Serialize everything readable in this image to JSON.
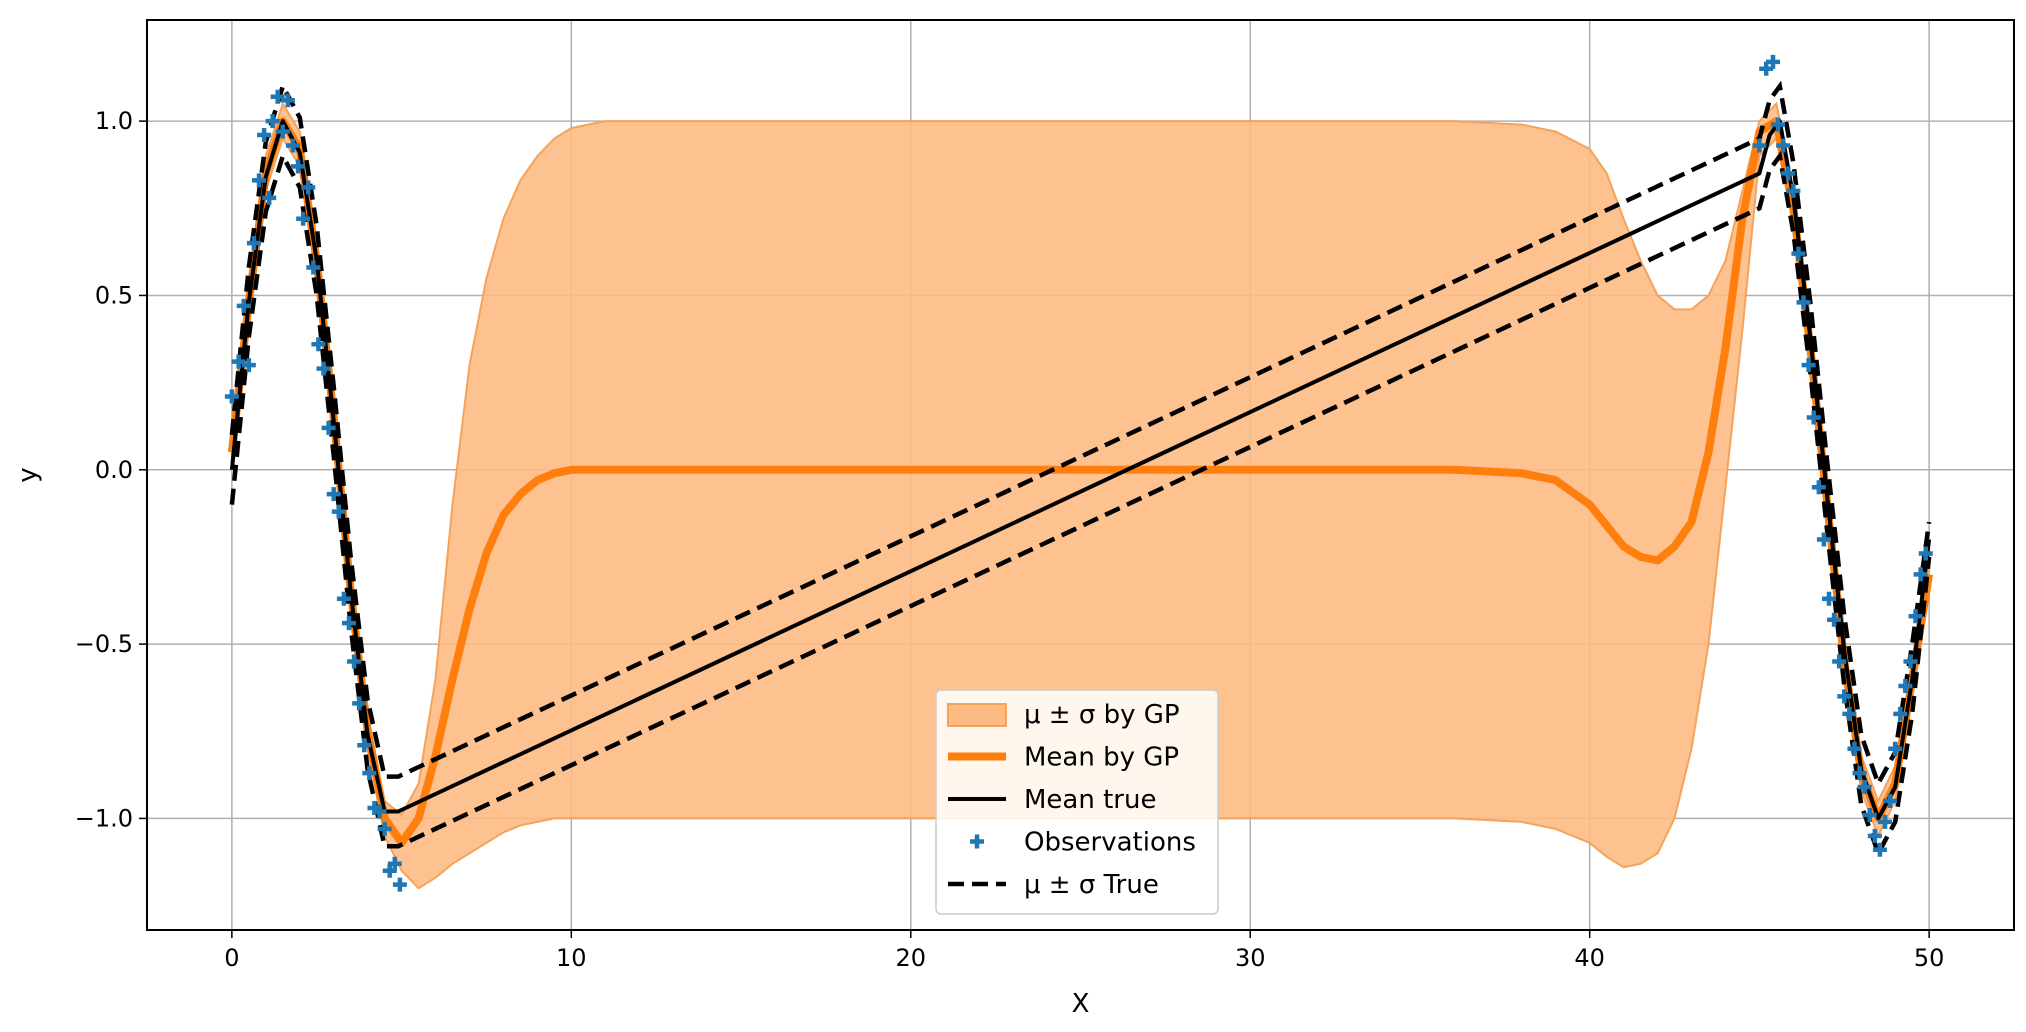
{
  "chart_data": {
    "type": "line",
    "title": "",
    "xlabel": "X",
    "ylabel": "y",
    "xlim": [
      -2.5,
      52.5
    ],
    "ylim": [
      -1.32,
      1.29
    ],
    "xticks": [
      0,
      10,
      20,
      30,
      40,
      50
    ],
    "yticks": [
      -1.0,
      -0.5,
      0.0,
      0.5,
      1.0
    ],
    "xtick_labels": [
      "0",
      "10",
      "20",
      "30",
      "40",
      "50"
    ],
    "ytick_labels": [
      "−1.0",
      "−0.5",
      "0.0",
      "0.5",
      "1.0"
    ],
    "grid": true,
    "legend_position": "lower-center",
    "colors": {
      "gp_mean": "#ff7f0e",
      "gp_band": "#fdbb84",
      "gp_band_edge": "#f5a35a",
      "true_mean": "#000000",
      "observations": "#1f77b4"
    },
    "legend": [
      {
        "label": "μ ± σ by GP",
        "style": "band"
      },
      {
        "label": "Mean by GP",
        "style": "thick-line"
      },
      {
        "label": "Mean true",
        "style": "line"
      },
      {
        "label": "Observations",
        "style": "marker"
      },
      {
        "label": "μ ± σ True",
        "style": "dashed"
      }
    ],
    "series": [
      {
        "name": "Mean by GP",
        "x": [
          0,
          0.5,
          1,
          1.5,
          2,
          2.5,
          3,
          3.5,
          4,
          4.5,
          5,
          5.5,
          6,
          6.5,
          7,
          7.5,
          8,
          8.5,
          9,
          9.5,
          10,
          10.5,
          11,
          12,
          14,
          20,
          30,
          36,
          38,
          39,
          40,
          40.5,
          41,
          41.5,
          42,
          42.5,
          43,
          43.5,
          44,
          44.5,
          45,
          45.5,
          46,
          46.5,
          47,
          47.5,
          48,
          48.5,
          49,
          49.5,
          50
        ],
        "y": [
          0.05,
          0.48,
          0.85,
          1.0,
          0.92,
          0.6,
          0.15,
          -0.35,
          -0.75,
          -1.0,
          -1.07,
          -1.0,
          -0.82,
          -0.6,
          -0.4,
          -0.24,
          -0.13,
          -0.07,
          -0.03,
          -0.01,
          0.0,
          0.0,
          0.0,
          0.0,
          0.0,
          0.0,
          0.0,
          0.0,
          -0.01,
          -0.03,
          -0.1,
          -0.16,
          -0.22,
          -0.25,
          -0.26,
          -0.22,
          -0.15,
          0.05,
          0.35,
          0.72,
          0.97,
          1.0,
          0.75,
          0.35,
          -0.1,
          -0.55,
          -0.87,
          -1.0,
          -0.9,
          -0.6,
          -0.3
        ]
      },
      {
        "name": "μ ± σ by GP",
        "x": [
          0,
          0.5,
          1,
          1.5,
          2,
          2.5,
          3,
          3.5,
          4,
          4.5,
          5,
          5.5,
          6,
          6.5,
          7,
          7.5,
          8,
          8.5,
          9,
          9.5,
          10,
          10.5,
          11,
          12,
          14,
          20,
          30,
          36,
          38,
          39,
          40,
          40.5,
          41,
          41.5,
          42,
          42.5,
          43,
          43.5,
          44,
          44.5,
          45,
          45.5,
          46,
          46.5,
          47,
          47.5,
          48,
          48.5,
          49,
          49.5,
          50
        ],
        "upper": [
          0.1,
          0.53,
          0.9,
          1.05,
          0.97,
          0.65,
          0.2,
          -0.3,
          -0.7,
          -0.95,
          -0.99,
          -0.9,
          -0.6,
          -0.1,
          0.3,
          0.55,
          0.72,
          0.83,
          0.9,
          0.95,
          0.98,
          0.99,
          1.0,
          1.0,
          1.0,
          1.0,
          1.0,
          1.0,
          0.99,
          0.97,
          0.92,
          0.85,
          0.72,
          0.6,
          0.5,
          0.46,
          0.46,
          0.5,
          0.6,
          0.8,
          1.0,
          1.05,
          0.8,
          0.4,
          -0.05,
          -0.5,
          -0.82,
          -0.95,
          -0.85,
          -0.55,
          -0.25
        ],
        "lower": [
          0.0,
          0.43,
          0.8,
          0.95,
          0.87,
          0.55,
          0.1,
          -0.4,
          -0.8,
          -1.05,
          -1.15,
          -1.2,
          -1.17,
          -1.13,
          -1.1,
          -1.07,
          -1.04,
          -1.02,
          -1.01,
          -1.0,
          -1.0,
          -1.0,
          -1.0,
          -1.0,
          -1.0,
          -1.0,
          -1.0,
          -1.0,
          -1.01,
          -1.03,
          -1.07,
          -1.11,
          -1.14,
          -1.13,
          -1.1,
          -1.0,
          -0.8,
          -0.5,
          -0.05,
          0.4,
          0.9,
          0.95,
          0.7,
          0.3,
          -0.15,
          -0.6,
          -0.92,
          -1.05,
          -0.95,
          -0.65,
          -0.35
        ]
      },
      {
        "name": "Mean true",
        "x": [
          0,
          0.5,
          1,
          1.5,
          2,
          2.5,
          3,
          3.5,
          4,
          4.5,
          4.9,
          45.0,
          45.3,
          45.6,
          46,
          46.5,
          47,
          47.5,
          48,
          48.5,
          49,
          49.5,
          50
        ],
        "y": [
          0.0,
          0.48,
          0.84,
          1.0,
          0.91,
          0.6,
          0.14,
          -0.35,
          -0.76,
          -0.98,
          -0.98,
          0.85,
          0.96,
          1.0,
          0.78,
          0.38,
          -0.08,
          -0.52,
          -0.86,
          -1.0,
          -0.91,
          -0.6,
          -0.2
        ]
      },
      {
        "name": "μ + σ True",
        "x": [
          0,
          0.5,
          1,
          1.5,
          2,
          2.5,
          3,
          3.5,
          4,
          4.5,
          4.9,
          45.0,
          45.3,
          45.6,
          46,
          46.5,
          47,
          47.5,
          48,
          48.5,
          49,
          49.5,
          50
        ],
        "y": [
          0.1,
          0.58,
          0.94,
          1.1,
          1.01,
          0.7,
          0.24,
          -0.25,
          -0.66,
          -0.88,
          -0.88,
          0.95,
          1.06,
          1.1,
          0.88,
          0.48,
          0.02,
          -0.42,
          -0.76,
          -0.9,
          -0.81,
          -0.5,
          -0.15
        ]
      },
      {
        "name": "μ − σ True",
        "x": [
          0,
          0.5,
          1,
          1.5,
          2,
          2.5,
          3,
          3.5,
          4,
          4.5,
          4.9,
          45.0,
          45.3,
          45.6,
          46,
          46.5,
          47,
          47.5,
          48,
          48.5,
          49,
          49.5,
          50
        ],
        "y": [
          -0.1,
          0.38,
          0.74,
          0.9,
          0.81,
          0.5,
          0.04,
          -0.45,
          -0.86,
          -1.08,
          -1.08,
          0.75,
          0.86,
          0.9,
          0.68,
          0.28,
          -0.18,
          -0.62,
          -0.96,
          -1.1,
          -1.01,
          -0.7,
          -0.25
        ]
      },
      {
        "name": "Observations",
        "x": [
          0.0,
          0.2,
          0.35,
          0.5,
          0.65,
          0.8,
          0.95,
          1.1,
          1.2,
          1.35,
          1.5,
          1.65,
          1.8,
          1.95,
          2.1,
          2.25,
          2.4,
          2.55,
          2.7,
          2.85,
          3.0,
          3.15,
          3.3,
          3.45,
          3.6,
          3.75,
          3.9,
          4.05,
          4.2,
          4.35,
          4.5,
          4.65,
          4.8,
          4.95,
          45.0,
          45.2,
          45.4,
          45.55,
          45.7,
          45.85,
          46.0,
          46.15,
          46.3,
          46.45,
          46.6,
          46.75,
          46.9,
          47.05,
          47.2,
          47.35,
          47.5,
          47.65,
          47.8,
          47.95,
          48.1,
          48.25,
          48.4,
          48.55,
          48.7,
          48.85,
          49.0,
          49.15,
          49.3,
          49.45,
          49.6,
          49.75,
          49.9
        ],
        "y": [
          0.21,
          0.31,
          0.47,
          0.3,
          0.65,
          0.83,
          0.96,
          0.78,
          1.0,
          1.07,
          0.97,
          1.06,
          0.93,
          0.87,
          0.72,
          0.81,
          0.58,
          0.36,
          0.29,
          0.12,
          -0.07,
          -0.12,
          -0.37,
          -0.44,
          -0.55,
          -0.67,
          -0.79,
          -0.87,
          -0.97,
          -0.98,
          -1.03,
          -1.15,
          -1.13,
          -1.19,
          0.93,
          1.15,
          1.17,
          0.99,
          0.93,
          0.85,
          0.8,
          0.62,
          0.48,
          0.3,
          0.15,
          -0.05,
          -0.2,
          -0.37,
          -0.43,
          -0.55,
          -0.65,
          -0.7,
          -0.8,
          -0.87,
          -0.91,
          -0.99,
          -1.05,
          -1.09,
          -1.01,
          -0.95,
          -0.8,
          -0.7,
          -0.62,
          -0.55,
          -0.42,
          -0.3,
          -0.24
        ]
      }
    ]
  }
}
